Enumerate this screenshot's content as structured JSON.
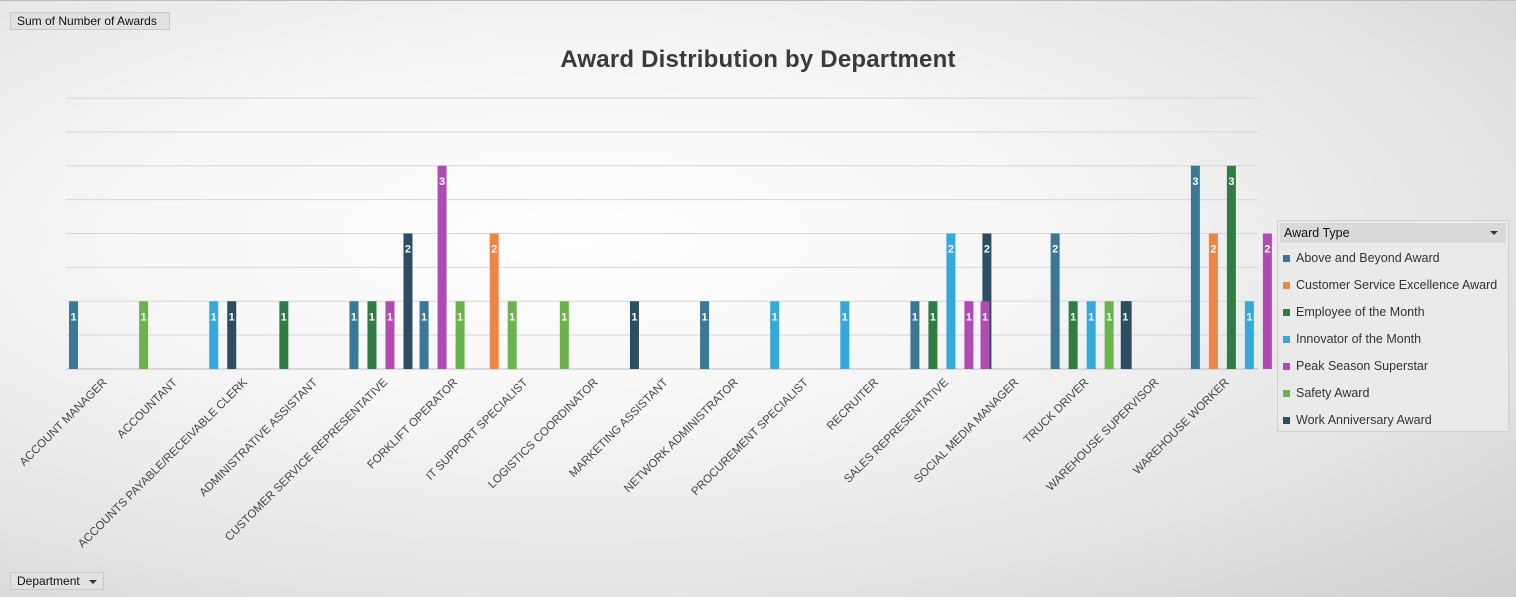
{
  "value_field_label": "Sum of Number of Awards",
  "axis_field_label": "Department",
  "legend": {
    "title": "Award Type",
    "items": [
      {
        "label": "Above and Beyond Award",
        "color": "#3a7896"
      },
      {
        "label": "Customer Service Excellence Award",
        "color": "#ee8446"
      },
      {
        "label": "Employee of the Month",
        "color": "#2f7d44"
      },
      {
        "label": "Innovator of the Month",
        "color": "#36a9dc"
      },
      {
        "label": "Peak Season Superstar",
        "color": "#b04bb4"
      },
      {
        "label": "Safety Award",
        "color": "#6ab44b"
      },
      {
        "label": "Work Anniversary Award",
        "color": "#2b4e61"
      }
    ]
  },
  "chart_data": {
    "type": "bar",
    "title": "Award Distribution by Department",
    "xlabel": "",
    "ylabel": "",
    "ylim": [
      0,
      4
    ],
    "grid": true,
    "legend_position": "right",
    "categories": [
      "ACCOUNT MANAGER",
      "ACCOUNTANT",
      "ACCOUNTS PAYABLE/RECEIVABLE CLERK",
      "ADMINISTRATIVE ASSISTANT",
      "CUSTOMER SERVICE REPRESENTATIVE",
      "FORKLIFT OPERATOR",
      "IT SUPPORT SPECIALIST",
      "LOGISTICS COORDINATOR",
      "MARKETING ASSISTANT",
      "NETWORK ADMINISTRATOR",
      "PROCUREMENT SPECIALIST",
      "RECRUITER",
      "SALES REPRESENTATIVE",
      "SOCIAL MEDIA MANAGER",
      "TRUCK DRIVER",
      "WAREHOUSE SUPERVISOR",
      "WAREHOUSE WORKER"
    ],
    "series": [
      {
        "name": "Above and Beyond Award",
        "values": [
          1,
          null,
          null,
          null,
          1,
          1,
          null,
          null,
          null,
          1,
          null,
          null,
          1,
          null,
          2,
          null,
          3
        ]
      },
      {
        "name": "Customer Service Excellence Award",
        "values": [
          null,
          null,
          null,
          null,
          null,
          null,
          2,
          null,
          null,
          null,
          null,
          null,
          null,
          null,
          null,
          null,
          2
        ]
      },
      {
        "name": "Employee of the Month",
        "values": [
          null,
          null,
          null,
          1,
          1,
          null,
          null,
          null,
          null,
          null,
          null,
          null,
          1,
          null,
          1,
          null,
          3
        ]
      },
      {
        "name": "Innovator of the Month",
        "values": [
          null,
          null,
          1,
          null,
          null,
          null,
          null,
          null,
          null,
          null,
          1,
          1,
          2,
          null,
          1,
          null,
          1
        ]
      },
      {
        "name": "Peak Season Superstar",
        "values": [
          null,
          null,
          null,
          null,
          1,
          3,
          null,
          null,
          null,
          null,
          null,
          null,
          1,
          1,
          null,
          null,
          2
        ]
      },
      {
        "name": "Safety Award",
        "values": [
          null,
          1,
          null,
          null,
          null,
          1,
          1,
          1,
          null,
          null,
          null,
          null,
          null,
          null,
          1,
          null,
          1
        ]
      },
      {
        "name": "Work Anniversary Award",
        "values": [
          null,
          null,
          1,
          null,
          2,
          null,
          null,
          null,
          1,
          null,
          null,
          null,
          2,
          null,
          1,
          1,
          null
        ]
      }
    ]
  }
}
